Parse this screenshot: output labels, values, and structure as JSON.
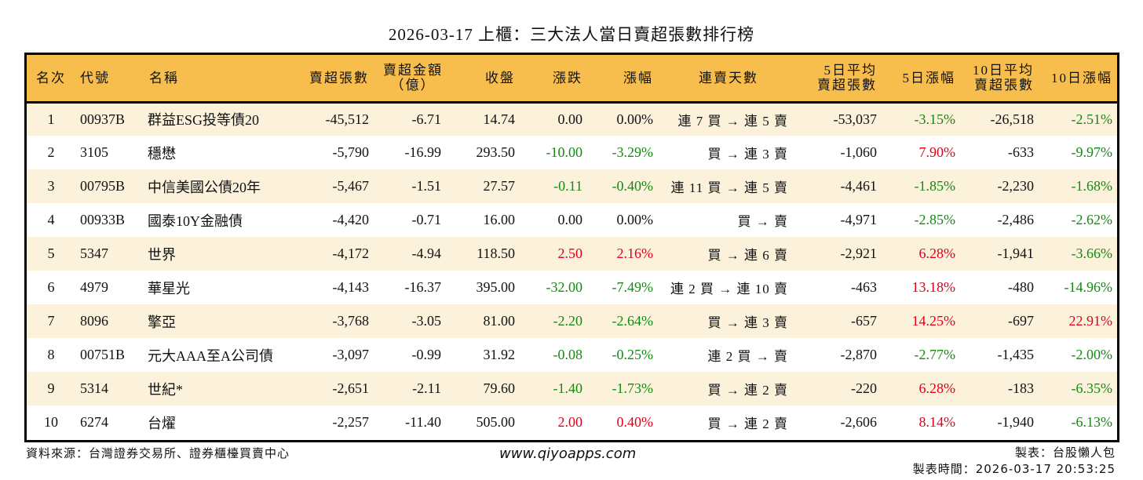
{
  "title": "2026-03-17 上櫃：三大法人當日賣超張數排行榜",
  "columns": {
    "rank": "名次",
    "code": "代號",
    "name": "名稱",
    "sell_lots": "賣超張數",
    "sell_amount_line1": "賣超金額",
    "sell_amount_line2": "（億）",
    "close": "收盤",
    "change": "漲跌",
    "change_pct": "漲幅",
    "streak": "連賣天數",
    "avg5_line1": "5日平均",
    "avg5_line2": "賣超張數",
    "pct5": "5日漲幅",
    "avg10_line1": "10日平均",
    "avg10_line2": "賣超張數",
    "pct10": "10日漲幅"
  },
  "colors": {
    "header_bg": "#f7be4e",
    "row_odd_bg": "#fcf2dc",
    "row_even_bg": "#ffffff",
    "up": "#e0001b",
    "down": "#138a13"
  },
  "rows": [
    {
      "rank": "1",
      "code": "00937B",
      "name": "群益ESG投等債20",
      "sell_lots": "-45,512",
      "sell_amount": "-6.71",
      "close": "14.74",
      "change": "0.00",
      "change_pct": "0.00%",
      "streak": "連 7 買 → 連 5 賣",
      "avg5": "-53,037",
      "pct5": "-3.15%",
      "avg10": "-26,518",
      "pct10": "-2.51%"
    },
    {
      "rank": "2",
      "code": "3105",
      "name": "穩懋",
      "sell_lots": "-5,790",
      "sell_amount": "-16.99",
      "close": "293.50",
      "change": "-10.00",
      "change_pct": "-3.29%",
      "streak": "買 → 連 3 賣",
      "avg5": "-1,060",
      "pct5": "7.90%",
      "avg10": "-633",
      "pct10": "-9.97%"
    },
    {
      "rank": "3",
      "code": "00795B",
      "name": "中信美國公債20年",
      "sell_lots": "-5,467",
      "sell_amount": "-1.51",
      "close": "27.57",
      "change": "-0.11",
      "change_pct": "-0.40%",
      "streak": "連 11 買 → 連 5 賣",
      "avg5": "-4,461",
      "pct5": "-1.85%",
      "avg10": "-2,230",
      "pct10": "-1.68%"
    },
    {
      "rank": "4",
      "code": "00933B",
      "name": "國泰10Y金融債",
      "sell_lots": "-4,420",
      "sell_amount": "-0.71",
      "close": "16.00",
      "change": "0.00",
      "change_pct": "0.00%",
      "streak": "買 → 賣",
      "avg5": "-4,971",
      "pct5": "-2.85%",
      "avg10": "-2,486",
      "pct10": "-2.62%"
    },
    {
      "rank": "5",
      "code": "5347",
      "name": "世界",
      "sell_lots": "-4,172",
      "sell_amount": "-4.94",
      "close": "118.50",
      "change": "2.50",
      "change_pct": "2.16%",
      "streak": "買 → 連 6 賣",
      "avg5": "-2,921",
      "pct5": "6.28%",
      "avg10": "-1,941",
      "pct10": "-3.66%"
    },
    {
      "rank": "6",
      "code": "4979",
      "name": "華星光",
      "sell_lots": "-4,143",
      "sell_amount": "-16.37",
      "close": "395.00",
      "change": "-32.00",
      "change_pct": "-7.49%",
      "streak": "連 2 買 → 連 10 賣",
      "avg5": "-463",
      "pct5": "13.18%",
      "avg10": "-480",
      "pct10": "-14.96%"
    },
    {
      "rank": "7",
      "code": "8096",
      "name": "擎亞",
      "sell_lots": "-3,768",
      "sell_amount": "-3.05",
      "close": "81.00",
      "change": "-2.20",
      "change_pct": "-2.64%",
      "streak": "買 → 連 3 賣",
      "avg5": "-657",
      "pct5": "14.25%",
      "avg10": "-697",
      "pct10": "22.91%"
    },
    {
      "rank": "8",
      "code": "00751B",
      "name": "元大AAA至A公司債",
      "sell_lots": "-3,097",
      "sell_amount": "-0.99",
      "close": "31.92",
      "change": "-0.08",
      "change_pct": "-0.25%",
      "streak": "連 2 買 → 賣",
      "avg5": "-2,870",
      "pct5": "-2.77%",
      "avg10": "-1,435",
      "pct10": "-2.00%"
    },
    {
      "rank": "9",
      "code": "5314",
      "name": "世紀*",
      "sell_lots": "-2,651",
      "sell_amount": "-2.11",
      "close": "79.60",
      "change": "-1.40",
      "change_pct": "-1.73%",
      "streak": "買 → 連 2 賣",
      "avg5": "-220",
      "pct5": "6.28%",
      "avg10": "-183",
      "pct10": "-6.35%"
    },
    {
      "rank": "10",
      "code": "6274",
      "name": "台燿",
      "sell_lots": "-2,257",
      "sell_amount": "-11.40",
      "close": "505.00",
      "change": "2.00",
      "change_pct": "0.40%",
      "streak": "買 → 連 2 賣",
      "avg5": "-2,606",
      "pct5": "8.14%",
      "avg10": "-1,940",
      "pct10": "-6.13%"
    }
  ],
  "footer": {
    "source": "資料來源：台灣證券交易所、證券櫃檯買賣中心",
    "website": "www.qiyoapps.com",
    "author": "製表：台股懶人包",
    "generated_at": "製表時間：2026-03-17 20:53:25"
  }
}
